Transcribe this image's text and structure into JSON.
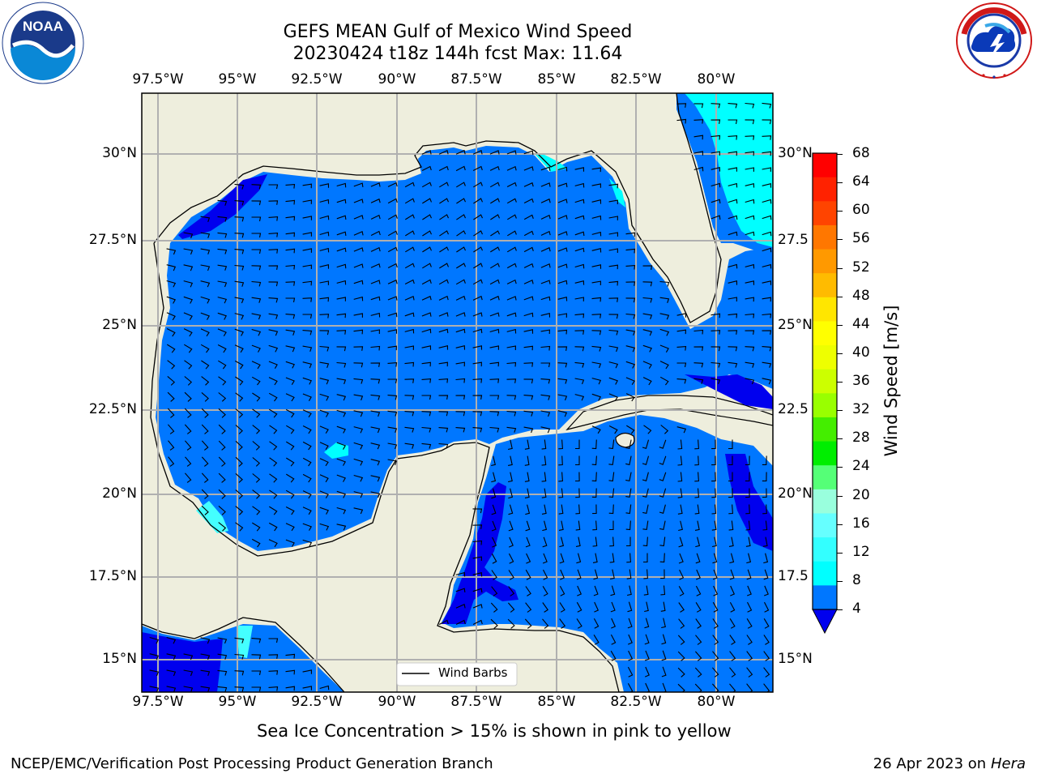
{
  "header": {
    "title_line1": "GEFS MEAN Gulf of Mexico Wind Speed",
    "title_line2": "20230424 t18z 144h fcst   Max: 11.64"
  },
  "logos": {
    "left": {
      "name": "NOAA",
      "text": "NOAA",
      "ring_text": "NATIONAL OCEANIC AND ATMOSPHERIC ADMINISTRATION · U.S. DEPARTMENT OF COMMERCE"
    },
    "right": {
      "name": "National Weather Service",
      "ring_text": "NATIONAL WEATHER SERVICE"
    }
  },
  "map": {
    "lon_ticks": [
      "97.5°W",
      "95°W",
      "92.5°W",
      "90°W",
      "87.5°W",
      "85°W",
      "82.5°W",
      "80°W"
    ],
    "lat_ticks_left": [
      "30°N",
      "27.5°N",
      "25°N",
      "22.5°N",
      "20°N",
      "17.5°N",
      "15°N"
    ],
    "lat_ticks_right": [
      "30°N",
      "27.5",
      "25°N",
      "22.5",
      "20°N",
      "17.5",
      "15°N"
    ],
    "legend_label": "Wind Barbs",
    "colors": {
      "land": "#eeeedd",
      "sea": "#0077ff",
      "calm": "#0000ee",
      "light": "#00ffff",
      "light2": "#44ffff"
    }
  },
  "colorbar": {
    "title": "Wind Speed [m/s]",
    "ticks": [
      "68",
      "64",
      "60",
      "56",
      "52",
      "48",
      "44",
      "40",
      "36",
      "32",
      "28",
      "24",
      "20",
      "16",
      "12",
      "8",
      "4"
    ],
    "colors": [
      "#ff0000",
      "#ff2200",
      "#ff4400",
      "#ff7700",
      "#ff9900",
      "#ffbb00",
      "#ffe600",
      "#ffff00",
      "#eeff00",
      "#ccff00",
      "#99ff00",
      "#44ee00",
      "#00ee00",
      "#55ff77",
      "#99ffdd",
      "#66ffff",
      "#33ffff",
      "#00ffff",
      "#0077ff"
    ],
    "under_color": "#0000ee"
  },
  "footer": {
    "note": "Sea Ice Concentration > 15% is shown in pink to yellow",
    "credit": "NCEP/EMC/Verification Post Processing Product Generation Branch",
    "date": "26 Apr 2023 on ",
    "host": "Hera"
  }
}
